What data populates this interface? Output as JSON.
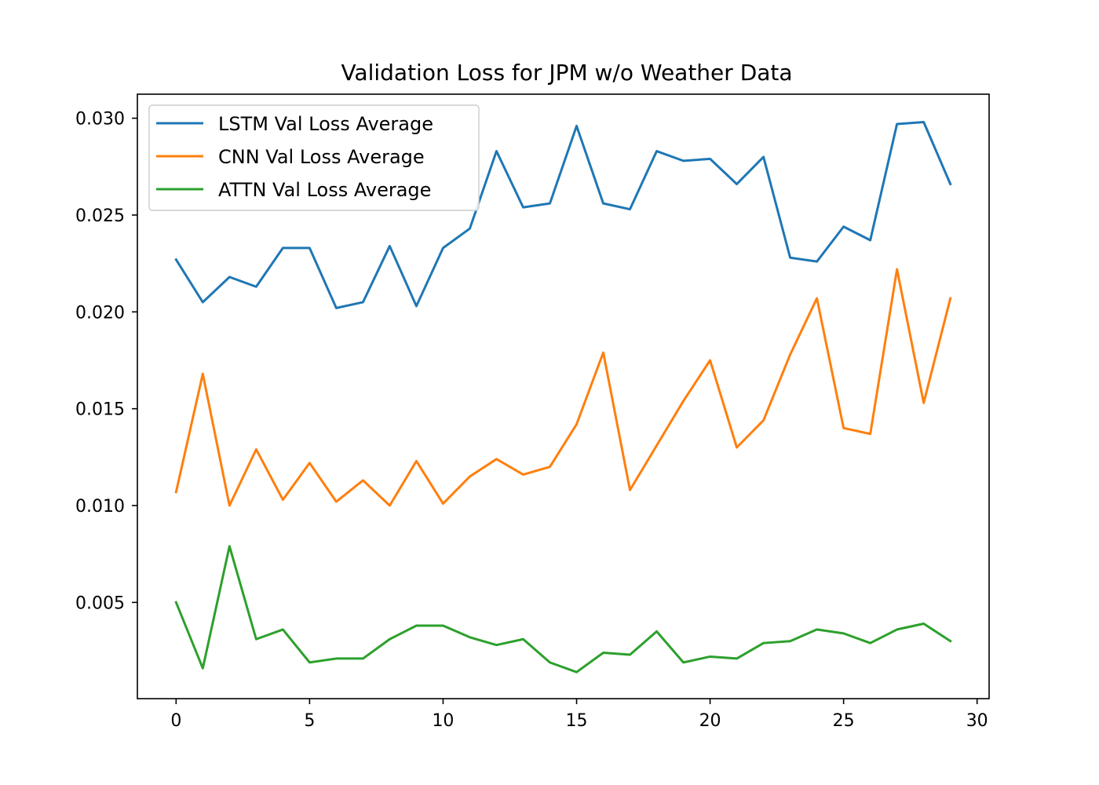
{
  "chart_data": {
    "type": "line",
    "title": "Validation Loss for JPM w/o Weather Data",
    "xlabel": "",
    "ylabel": "",
    "xlim": [
      -1.45,
      30.45
    ],
    "ylim": [
      3e-05,
      0.03124
    ],
    "x_ticks": [
      0,
      5,
      10,
      15,
      20,
      25,
      30
    ],
    "x_tick_labels": [
      "0",
      "5",
      "10",
      "15",
      "20",
      "25",
      "30"
    ],
    "y_ticks": [
      0.005,
      0.01,
      0.015,
      0.02,
      0.025,
      0.03
    ],
    "y_tick_labels": [
      "0.005",
      "0.010",
      "0.015",
      "0.020",
      "0.025",
      "0.030"
    ],
    "grid": false,
    "legend_position": "top-left",
    "x": [
      0,
      1,
      2,
      3,
      4,
      5,
      6,
      7,
      8,
      9,
      10,
      11,
      12,
      13,
      14,
      15,
      16,
      17,
      18,
      19,
      20,
      21,
      22,
      23,
      24,
      25,
      26,
      27,
      28,
      29
    ],
    "series": [
      {
        "name": "LSTM Val Loss Average",
        "color": "#1f77b4",
        "values": [
          0.0227,
          0.0205,
          0.0218,
          0.0213,
          0.0233,
          0.0233,
          0.0202,
          0.0205,
          0.0234,
          0.0203,
          0.0233,
          0.0243,
          0.0283,
          0.0254,
          0.0256,
          0.0296,
          0.0256,
          0.0253,
          0.0283,
          0.0278,
          0.0279,
          0.0266,
          0.028,
          0.0228,
          0.0226,
          0.0244,
          0.0237,
          0.0297,
          0.0298,
          0.0266
        ]
      },
      {
        "name": "CNN Val Loss Average",
        "color": "#ff7f0e",
        "values": [
          0.0107,
          0.0168,
          0.01,
          0.0129,
          0.0103,
          0.0122,
          0.0102,
          0.0113,
          0.01,
          0.0123,
          0.0101,
          0.0115,
          0.0124,
          0.0116,
          0.012,
          0.0142,
          0.0179,
          0.0108,
          0.0131,
          0.0154,
          0.0175,
          0.013,
          0.0144,
          0.0178,
          0.0207,
          0.014,
          0.0137,
          0.0222,
          0.0153,
          0.0207
        ]
      },
      {
        "name": "ATTN Val Loss Average",
        "color": "#2ca02c",
        "values": [
          0.005,
          0.0016,
          0.0079,
          0.0031,
          0.0036,
          0.0019,
          0.0021,
          0.0021,
          0.0031,
          0.0038,
          0.0038,
          0.0032,
          0.0028,
          0.0031,
          0.0019,
          0.0014,
          0.0024,
          0.0023,
          0.0035,
          0.0019,
          0.0022,
          0.0021,
          0.0029,
          0.003,
          0.0036,
          0.0034,
          0.0029,
          0.0036,
          0.0039,
          0.003
        ]
      }
    ]
  }
}
